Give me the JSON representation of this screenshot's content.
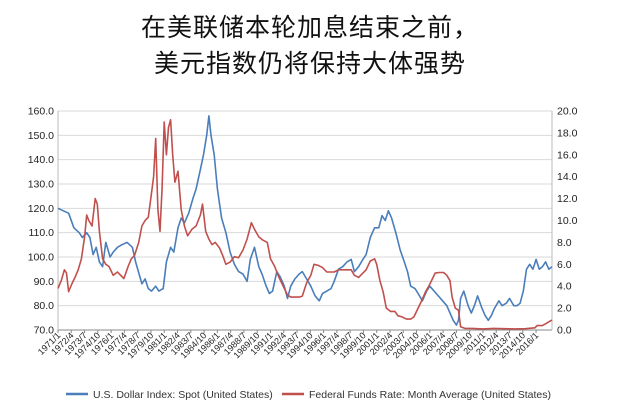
{
  "title": {
    "line1": "在美联储本轮加息结束之前，",
    "line2": "美元指数仍将保持大体强势"
  },
  "chart_data": {
    "type": "line",
    "title": "在美联储本轮加息结束之前，美元指数仍将保持大体强势",
    "left_axis": {
      "min": 70,
      "max": 160,
      "step": 10,
      "tick_decimals": 1
    },
    "right_axis": {
      "min": 0,
      "max": 20,
      "step": 2,
      "tick_decimals": 1
    },
    "x_range": [
      1971.0,
      2017.5
    ],
    "x_tick_labels": [
      "1971/1",
      "1972/4",
      "1973/7",
      "1974/10",
      "1976/1",
      "1977/4",
      "1978/7",
      "1979/10",
      "1981/1",
      "1982/4",
      "1983/7",
      "1984/10",
      "1986/1",
      "1987/4",
      "1988/7",
      "1989/10",
      "1991/1",
      "1992/4",
      "1993/7",
      "1994/10",
      "1996/1",
      "1997/4",
      "1998/7",
      "1999/10",
      "2001/1",
      "2002/4",
      "2003/7",
      "2004/10",
      "2006/1",
      "2007/4",
      "2008/7",
      "2009/10",
      "2011/1",
      "2012/4",
      "2013/7",
      "2014/10",
      "2016/1"
    ],
    "grid": "horizontal",
    "legend_position": "bottom",
    "series": [
      {
        "name": "U.S. Dollar Index: Spot (United States)",
        "axis": "left",
        "color": "#4a7ebb",
        "points": [
          [
            1971.0,
            120
          ],
          [
            1971.5,
            119
          ],
          [
            1972.0,
            118
          ],
          [
            1972.5,
            112
          ],
          [
            1973.0,
            110
          ],
          [
            1973.3,
            108
          ],
          [
            1973.7,
            110
          ],
          [
            1974.0,
            108
          ],
          [
            1974.3,
            101
          ],
          [
            1974.6,
            104
          ],
          [
            1974.9,
            98
          ],
          [
            1975.2,
            96
          ],
          [
            1975.5,
            106
          ],
          [
            1975.9,
            100
          ],
          [
            1976.2,
            102
          ],
          [
            1976.6,
            104
          ],
          [
            1977.0,
            105
          ],
          [
            1977.5,
            106
          ],
          [
            1978.0,
            104
          ],
          [
            1978.3,
            98
          ],
          [
            1978.7,
            92
          ],
          [
            1978.9,
            89
          ],
          [
            1979.2,
            91
          ],
          [
            1979.5,
            87
          ],
          [
            1979.8,
            86
          ],
          [
            1980.2,
            88
          ],
          [
            1980.5,
            86
          ],
          [
            1980.9,
            87
          ],
          [
            1981.2,
            98
          ],
          [
            1981.6,
            104
          ],
          [
            1981.9,
            102
          ],
          [
            1982.3,
            112
          ],
          [
            1982.6,
            116
          ],
          [
            1982.9,
            114
          ],
          [
            1983.3,
            118
          ],
          [
            1983.7,
            124
          ],
          [
            1984.0,
            128
          ],
          [
            1984.4,
            136
          ],
          [
            1984.7,
            142
          ],
          [
            1985.0,
            150
          ],
          [
            1985.2,
            158
          ],
          [
            1985.4,
            150
          ],
          [
            1985.7,
            142
          ],
          [
            1986.0,
            128
          ],
          [
            1986.4,
            116
          ],
          [
            1986.8,
            110
          ],
          [
            1987.2,
            102
          ],
          [
            1987.6,
            97
          ],
          [
            1988.0,
            94
          ],
          [
            1988.4,
            93
          ],
          [
            1988.8,
            90
          ],
          [
            1989.1,
            99
          ],
          [
            1989.5,
            104
          ],
          [
            1989.9,
            96
          ],
          [
            1990.2,
            93
          ],
          [
            1990.6,
            88
          ],
          [
            1990.9,
            85
          ],
          [
            1991.2,
            86
          ],
          [
            1991.6,
            94
          ],
          [
            1991.9,
            92
          ],
          [
            1992.3,
            88
          ],
          [
            1992.6,
            83
          ],
          [
            1992.9,
            88
          ],
          [
            1993.3,
            91
          ],
          [
            1993.7,
            93
          ],
          [
            1994.0,
            94
          ],
          [
            1994.4,
            91
          ],
          [
            1994.8,
            88
          ],
          [
            1995.2,
            84
          ],
          [
            1995.6,
            82
          ],
          [
            1995.9,
            85
          ],
          [
            1996.3,
            86
          ],
          [
            1996.7,
            87
          ],
          [
            1997.0,
            90
          ],
          [
            1997.4,
            95
          ],
          [
            1997.8,
            96
          ],
          [
            1998.2,
            98
          ],
          [
            1998.6,
            99
          ],
          [
            1998.9,
            94
          ],
          [
            1999.3,
            96
          ],
          [
            1999.7,
            99
          ],
          [
            2000.0,
            101
          ],
          [
            2000.4,
            108
          ],
          [
            2000.8,
            112
          ],
          [
            2001.2,
            112
          ],
          [
            2001.5,
            117
          ],
          [
            2001.8,
            115
          ],
          [
            2002.1,
            119
          ],
          [
            2002.4,
            116
          ],
          [
            2002.8,
            110
          ],
          [
            2003.2,
            103
          ],
          [
            2003.6,
            98
          ],
          [
            2003.9,
            94
          ],
          [
            2004.2,
            88
          ],
          [
            2004.6,
            87
          ],
          [
            2004.9,
            85
          ],
          [
            2005.3,
            82
          ],
          [
            2005.7,
            86
          ],
          [
            2006.0,
            88
          ],
          [
            2006.4,
            86
          ],
          [
            2006.8,
            84
          ],
          [
            2007.2,
            82
          ],
          [
            2007.6,
            80
          ],
          [
            2007.9,
            77
          ],
          [
            2008.2,
            74
          ],
          [
            2008.5,
            72
          ],
          [
            2008.7,
            74
          ],
          [
            2008.9,
            83
          ],
          [
            2009.2,
            86
          ],
          [
            2009.6,
            80
          ],
          [
            2009.9,
            77
          ],
          [
            2010.2,
            80
          ],
          [
            2010.5,
            84
          ],
          [
            2010.9,
            79
          ],
          [
            2011.2,
            76
          ],
          [
            2011.5,
            74
          ],
          [
            2011.8,
            76
          ],
          [
            2012.1,
            79
          ],
          [
            2012.5,
            82
          ],
          [
            2012.8,
            80
          ],
          [
            2013.2,
            81
          ],
          [
            2013.5,
            83
          ],
          [
            2013.9,
            80
          ],
          [
            2014.2,
            80
          ],
          [
            2014.5,
            81
          ],
          [
            2014.8,
            86
          ],
          [
            2015.1,
            95
          ],
          [
            2015.4,
            97
          ],
          [
            2015.7,
            95
          ],
          [
            2016.0,
            99
          ],
          [
            2016.3,
            95
          ],
          [
            2016.6,
            96
          ],
          [
            2016.9,
            98
          ],
          [
            2017.2,
            95
          ],
          [
            2017.5,
            96
          ]
        ]
      },
      {
        "name": "Federal Funds Rate: Month Average (United States)",
        "axis": "right",
        "color": "#c0504d",
        "points": [
          [
            1971.0,
            3.8
          ],
          [
            1971.3,
            4.5
          ],
          [
            1971.6,
            5.5
          ],
          [
            1971.8,
            5.2
          ],
          [
            1972.0,
            3.5
          ],
          [
            1972.3,
            4.2
          ],
          [
            1972.6,
            4.8
          ],
          [
            1972.9,
            5.5
          ],
          [
            1973.2,
            6.5
          ],
          [
            1973.5,
            8.5
          ],
          [
            1973.7,
            10.5
          ],
          [
            1973.9,
            10.0
          ],
          [
            1974.2,
            9.5
          ],
          [
            1974.5,
            12.0
          ],
          [
            1974.7,
            11.5
          ],
          [
            1974.9,
            9.0
          ],
          [
            1975.2,
            6.5
          ],
          [
            1975.5,
            6.0
          ],
          [
            1975.8,
            5.8
          ],
          [
            1976.2,
            5.0
          ],
          [
            1976.6,
            5.3
          ],
          [
            1976.9,
            5.0
          ],
          [
            1977.2,
            4.7
          ],
          [
            1977.6,
            5.8
          ],
          [
            1977.9,
            6.5
          ],
          [
            1978.2,
            6.8
          ],
          [
            1978.6,
            8.0
          ],
          [
            1978.9,
            9.5
          ],
          [
            1979.2,
            10.0
          ],
          [
            1979.5,
            10.3
          ],
          [
            1979.8,
            12.5
          ],
          [
            1980.0,
            14.0
          ],
          [
            1980.2,
            17.5
          ],
          [
            1980.4,
            11.0
          ],
          [
            1980.6,
            9.0
          ],
          [
            1980.8,
            13.0
          ],
          [
            1981.0,
            19.0
          ],
          [
            1981.2,
            16.0
          ],
          [
            1981.4,
            18.5
          ],
          [
            1981.6,
            19.2
          ],
          [
            1981.8,
            16.0
          ],
          [
            1982.0,
            13.5
          ],
          [
            1982.3,
            14.5
          ],
          [
            1982.6,
            11.0
          ],
          [
            1982.9,
            9.5
          ],
          [
            1983.2,
            8.6
          ],
          [
            1983.6,
            9.2
          ],
          [
            1984.0,
            9.5
          ],
          [
            1984.4,
            10.5
          ],
          [
            1984.6,
            11.5
          ],
          [
            1984.9,
            9.0
          ],
          [
            1985.2,
            8.3
          ],
          [
            1985.5,
            7.8
          ],
          [
            1985.8,
            8.0
          ],
          [
            1986.2,
            7.5
          ],
          [
            1986.5,
            6.8
          ],
          [
            1986.8,
            6.0
          ],
          [
            1987.2,
            6.2
          ],
          [
            1987.6,
            6.7
          ],
          [
            1988.0,
            6.6
          ],
          [
            1988.4,
            7.3
          ],
          [
            1988.8,
            8.3
          ],
          [
            1989.2,
            9.8
          ],
          [
            1989.5,
            9.2
          ],
          [
            1989.9,
            8.5
          ],
          [
            1990.3,
            8.2
          ],
          [
            1990.7,
            8.0
          ],
          [
            1991.0,
            6.5
          ],
          [
            1991.4,
            5.8
          ],
          [
            1991.8,
            4.8
          ],
          [
            1992.2,
            4.0
          ],
          [
            1992.6,
            3.2
          ],
          [
            1992.9,
            3.0
          ],
          [
            1993.3,
            3.0
          ],
          [
            1993.7,
            3.0
          ],
          [
            1994.0,
            3.1
          ],
          [
            1994.4,
            4.3
          ],
          [
            1994.8,
            5.0
          ],
          [
            1995.1,
            6.0
          ],
          [
            1995.5,
            5.9
          ],
          [
            1995.9,
            5.7
          ],
          [
            1996.3,
            5.3
          ],
          [
            1996.7,
            5.3
          ],
          [
            1997.0,
            5.3
          ],
          [
            1997.4,
            5.5
          ],
          [
            1997.8,
            5.5
          ],
          [
            1998.2,
            5.5
          ],
          [
            1998.6,
            5.5
          ],
          [
            1998.9,
            5.0
          ],
          [
            1999.3,
            4.8
          ],
          [
            1999.7,
            5.2
          ],
          [
            2000.0,
            5.5
          ],
          [
            2000.4,
            6.3
          ],
          [
            2000.8,
            6.5
          ],
          [
            2001.0,
            6.0
          ],
          [
            2001.3,
            4.5
          ],
          [
            2001.6,
            3.5
          ],
          [
            2001.9,
            2.0
          ],
          [
            2002.3,
            1.7
          ],
          [
            2002.7,
            1.7
          ],
          [
            2003.0,
            1.3
          ],
          [
            2003.4,
            1.2
          ],
          [
            2003.8,
            1.0
          ],
          [
            2004.2,
            1.0
          ],
          [
            2004.5,
            1.2
          ],
          [
            2004.9,
            2.0
          ],
          [
            2005.2,
            2.6
          ],
          [
            2005.6,
            3.5
          ],
          [
            2005.9,
            4.0
          ],
          [
            2006.2,
            4.6
          ],
          [
            2006.5,
            5.2
          ],
          [
            2006.9,
            5.25
          ],
          [
            2007.3,
            5.25
          ],
          [
            2007.6,
            5.0
          ],
          [
            2007.9,
            4.5
          ],
          [
            2008.1,
            3.0
          ],
          [
            2008.4,
            2.0
          ],
          [
            2008.7,
            1.8
          ],
          [
            2008.9,
            0.3
          ],
          [
            2009.3,
            0.15
          ],
          [
            2010.0,
            0.15
          ],
          [
            2011.0,
            0.1
          ],
          [
            2012.0,
            0.15
          ],
          [
            2013.0,
            0.12
          ],
          [
            2014.0,
            0.1
          ],
          [
            2015.0,
            0.12
          ],
          [
            2015.9,
            0.2
          ],
          [
            2016.1,
            0.4
          ],
          [
            2016.6,
            0.4
          ],
          [
            2016.95,
            0.6
          ],
          [
            2017.2,
            0.75
          ],
          [
            2017.5,
            0.9
          ]
        ]
      }
    ]
  }
}
